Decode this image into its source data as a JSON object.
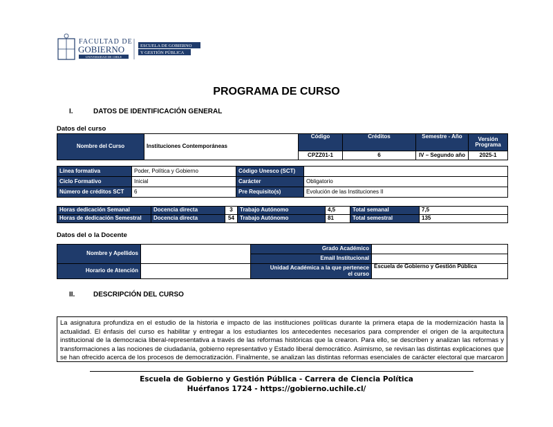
{
  "logo": {
    "faculty_line1": "FACULTAD DE",
    "faculty_line2": "GOBIERNO",
    "university": "UNIVERSIDAD DE CHILE",
    "school_line1": "ESCUELA DE GOBIERNO",
    "school_line2": "Y GESTIÓN PÚBLICA"
  },
  "title": "PROGRAMA DE CURSO",
  "section1": {
    "num": "I.",
    "label": "DATOS DE IDENTIFICACIÓN GENERAL"
  },
  "datos_curso": "Datos del curso",
  "course": {
    "name_label": "Nombre del Curso",
    "name": "Instituciones Contemporáneas",
    "codigo_label": "Código",
    "codigo": "CPZZ01-1",
    "creditos_label": "Créditos",
    "creditos": "6",
    "semestre_label": "Semestre - Año",
    "semestre": "IV – Segundo año",
    "version_label": "Versión Programa",
    "version": "2025-1"
  },
  "info": [
    {
      "l1": "Línea formativa",
      "v1": "Poder, Política y Gobierno",
      "l2": "Código Unesco (SCT)",
      "v2": ""
    },
    {
      "l1": "Ciclo Formativo",
      "v1": "Inicial",
      "l2": "Carácter",
      "v2": "Obligatorio"
    },
    {
      "l1": "Número de créditos SCT",
      "v1": "6",
      "l2": "Pre Requisito(s)",
      "v2": "Evolución de las Instituciones II"
    }
  ],
  "hours": [
    {
      "label": "Horas dedicación Semanal",
      "dd": "Docencia directa",
      "ddv": "3",
      "ta": "Trabajo Autónomo",
      "tav": "4,5",
      "tot": "Total semanal",
      "totv": "7,5"
    },
    {
      "label": "Horas de dedicación Semestral",
      "dd": "Docencia directa",
      "ddv": "54",
      "ta": "Trabajo Autónomo",
      "tav": "81",
      "tot": "Total semestral",
      "totv": "135"
    }
  ],
  "datos_docente": "Datos del o la Docente",
  "docente": {
    "nombre_label": "Nombre y Apellidos",
    "nombre": "",
    "horario_label": "Horario de Atención",
    "horario": "",
    "grado_label": "Grado Académico",
    "grado": "",
    "email_label": "Email Institucional",
    "email": "",
    "unidad_label": "Unidad Académica a la que pertenece el curso",
    "unidad": "Escuela de Gobierno y Gestión Pública"
  },
  "section2": {
    "num": "II.",
    "label": "DESCRIPCIÓN DEL CURSO"
  },
  "description": "La asignatura profundiza en el estudio de la historia e impacto de las instituciones políticas durante la primera etapa de la modernización hasta la actualidad. El énfasis del curso es habilitar y entregar a los estudiantes los antecedentes necesarios para comprender el origen de la arquitectura institucional de la democracia liberal-representativa a través de las reformas históricas que la crearon. Para ello, se describen y analizan las reformas y transformaciones a las nociones de ciudadanía, gobierno representativo y Estado liberal democrático. Asimismo, se revisan las distintas explicaciones que se han ofrecido acerca de los procesos de democratización. Finalmente, se analizan las distintas reformas esenciales de carácter electoral que marcaron el tránsito de un gobierno",
  "footer": {
    "line1": "Escuela de Gobierno y Gestión Pública - Carrera de Ciencia Política",
    "line2": "Huérfanos 1724 - https://gobierno.uchile.cl/"
  },
  "colors": {
    "header": "#1f3b6b"
  }
}
